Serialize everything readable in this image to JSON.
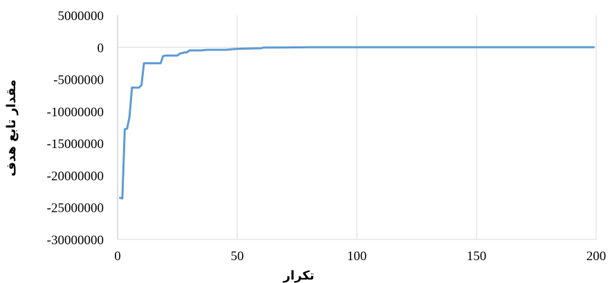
{
  "chart_data": {
    "type": "line",
    "title": "",
    "xlabel": "تکرار",
    "ylabel": "مقدار تابع هدف",
    "xlim": [
      0,
      200
    ],
    "ylim": [
      -30000000,
      5000000
    ],
    "x_ticks": [
      0,
      50,
      100,
      150,
      200
    ],
    "y_ticks": [
      5000000,
      0,
      -5000000,
      -10000000,
      -15000000,
      -20000000,
      -25000000,
      -30000000
    ],
    "grid": "vertical",
    "legend": "none",
    "colors": {
      "line": "#5b9bd5",
      "grid": "#d9d9d9",
      "axis": "#bfbfbf"
    },
    "series": [
      {
        "x": [
          1,
          2,
          3,
          4,
          5,
          6,
          7,
          8,
          9,
          10,
          11,
          12,
          15,
          17,
          18,
          19,
          20,
          23,
          25,
          26,
          28,
          29,
          30,
          31,
          35,
          37,
          40,
          45,
          48,
          50,
          55,
          60,
          61,
          70,
          80,
          100,
          120,
          150,
          170,
          199
        ],
        "y": [
          -23500000,
          -23600000,
          -12800000,
          -12700000,
          -10800000,
          -6300000,
          -6300000,
          -6300000,
          -6300000,
          -5900000,
          -2500000,
          -2500000,
          -2500000,
          -2500000,
          -2500000,
          -1400000,
          -1300000,
          -1300000,
          -1300000,
          -1000000,
          -800000,
          -800000,
          -500000,
          -500000,
          -500000,
          -400000,
          -400000,
          -400000,
          -300000,
          -250000,
          -200000,
          -150000,
          -50000,
          -30000,
          0,
          0,
          0,
          0,
          0,
          0
        ]
      }
    ]
  }
}
